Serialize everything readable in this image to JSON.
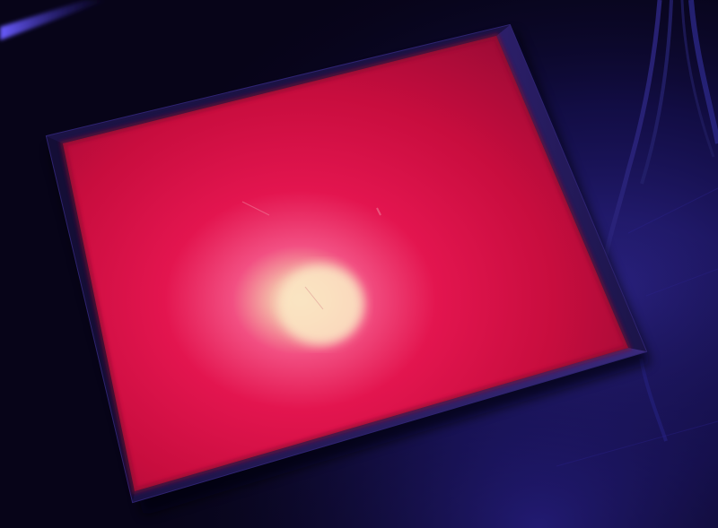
{
  "image": {
    "description_colors": {
      "background": "#070418",
      "floor_blue": "#2a1f8a",
      "box_frame": "#1c1546",
      "panel_red": "#e8104a",
      "glow_center": "#f4d2a8",
      "cable": "#23206a"
    }
  }
}
